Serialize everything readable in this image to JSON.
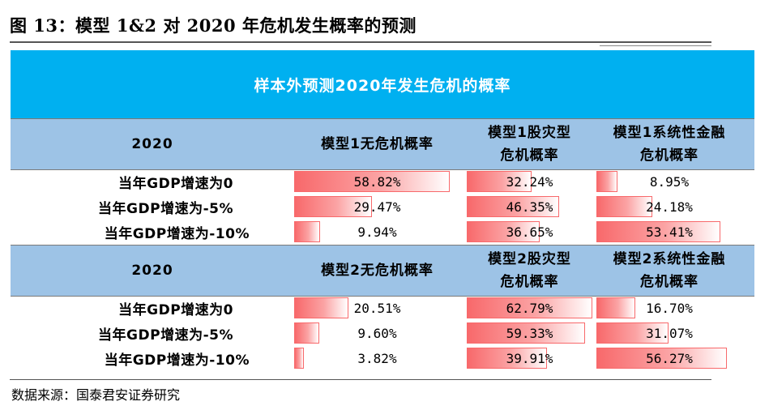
{
  "figure_title": "图 13：模型 1&2 对 2020 年危机发生概率的预测",
  "source": "数据来源：国泰君安证券研究",
  "chart_data": {
    "type": "table",
    "title": "样本外预测2020年发生危机的概率",
    "blocks": [
      {
        "header": [
          "2020",
          "模型1无危机概率",
          "模型1股灾型\n危机概率",
          "模型1系统性金融\n危机概率"
        ],
        "rows": [
          {
            "label": "当年GDP增速为0",
            "values": [
              58.82,
              32.24,
              8.95
            ],
            "texts": [
              "58.82%",
              "32.24%",
              "8.95%"
            ]
          },
          {
            "label": "当年GDP增速为-5%",
            "values": [
              29.47,
              46.35,
              24.18
            ],
            "texts": [
              "29.47%",
              "46.35%",
              "24.18%"
            ]
          },
          {
            "label": "当年GDP增速为-10%",
            "values": [
              9.94,
              36.65,
              53.41
            ],
            "texts": [
              "9.94%",
              "36.65%",
              "53.41%"
            ]
          }
        ]
      },
      {
        "header": [
          "2020",
          "模型2无危机概率",
          "模型2股灾型\n危机概率",
          "模型2系统性金融\n危机概率"
        ],
        "rows": [
          {
            "label": "当年GDP增速为0",
            "values": [
              20.51,
              62.79,
              16.7
            ],
            "texts": [
              "20.51%",
              "62.79%",
              "16.70%"
            ]
          },
          {
            "label": "当年GDP增速为-5%",
            "values": [
              9.6,
              59.33,
              31.07
            ],
            "texts": [
              "9.60%",
              "59.33%",
              "31.07%"
            ]
          },
          {
            "label": "当年GDP增速为-10%",
            "values": [
              3.82,
              39.91,
              56.27
            ],
            "texts": [
              "3.82%",
              "39.91%",
              "56.27%"
            ]
          }
        ]
      }
    ],
    "bar_scale_max": 62.79,
    "colors": {
      "banner": "#00B0F0",
      "header": "#9DC3E6",
      "bar": "#F8696B"
    }
  }
}
